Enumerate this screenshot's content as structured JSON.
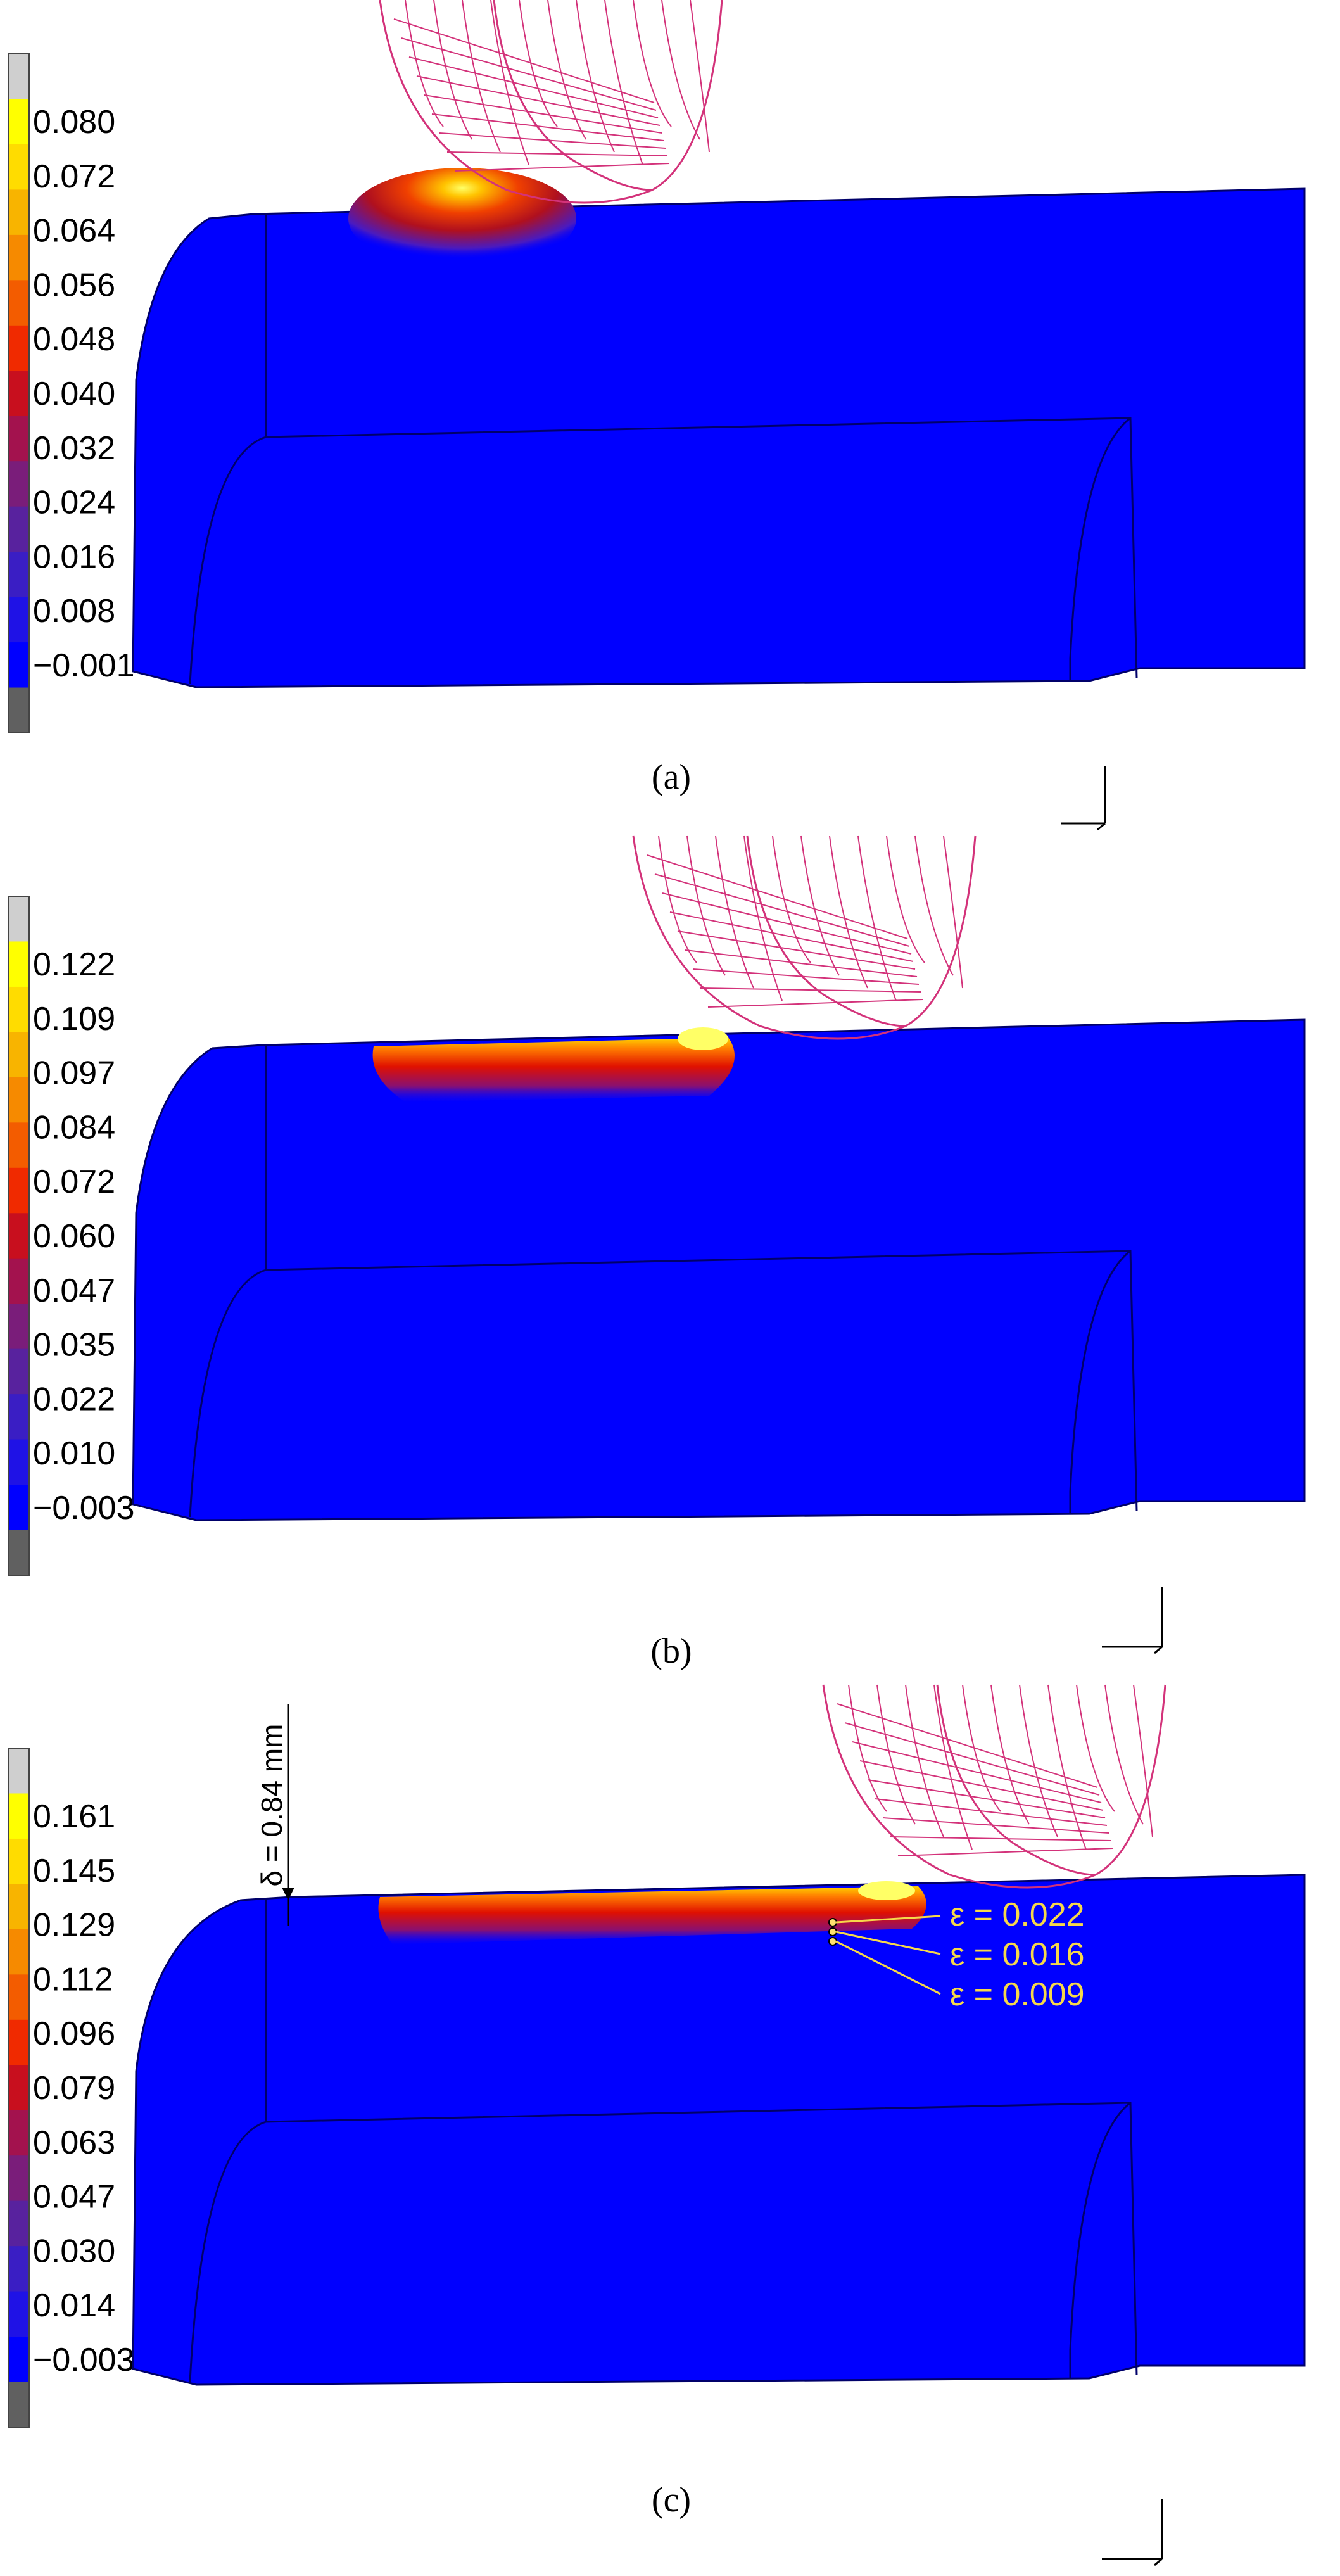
{
  "colors": {
    "background": "#ffffff",
    "body_fill": "#0000ff",
    "edge_stroke": "#00006a",
    "tool_wire": "#d3327a",
    "annotation_text": "#f6d84a",
    "legend_scale": [
      "#606060",
      "#0000ff",
      "#1f12e6",
      "#3a1ec4",
      "#58229e",
      "#7a1d7a",
      "#a3124e",
      "#c80f1e",
      "#f02a00",
      "#f35c00",
      "#f68a00",
      "#f8b400",
      "#ffdc00",
      "#ffff00",
      "#cfcfcf"
    ]
  },
  "panels": [
    {
      "id": "a",
      "caption": "(a)",
      "legend_ticks": [
        "0.080",
        "0.072",
        "0.064",
        "0.056",
        "0.048",
        "0.040",
        "0.032",
        "0.024",
        "0.016",
        "0.008",
        "−0.001"
      ]
    },
    {
      "id": "b",
      "caption": "(b)",
      "legend_ticks": [
        "0.122",
        "0.109",
        "0.097",
        "0.084",
        "0.072",
        "0.060",
        "0.047",
        "0.035",
        "0.022",
        "0.010",
        "−0.003"
      ]
    },
    {
      "id": "c",
      "caption": "(c)",
      "legend_ticks": [
        "0.161",
        "0.145",
        "0.129",
        "0.112",
        "0.096",
        "0.079",
        "0.063",
        "0.047",
        "0.030",
        "0.014",
        "−0.003"
      ],
      "depth_label": "δ = 0.84 mm",
      "strain_annotations": [
        "ε = 0.022",
        "ε = 0.016",
        "ε = 0.009"
      ]
    }
  ]
}
